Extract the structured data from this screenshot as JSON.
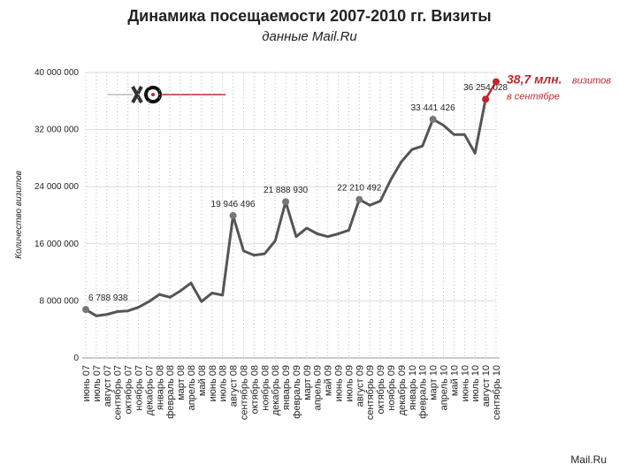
{
  "chart_data": {
    "type": "line",
    "title": "Динамика посещаемости 2007-2010 гг. Визиты",
    "subtitle": "данные Mail.Ru",
    "y_label": "Количество визитов",
    "source": "Mail.Ru",
    "categories": [
      "июнь 07",
      "июль 07",
      "август 07",
      "сентябрь 07",
      "октябрь 07",
      "ноябрь 07",
      "декабрь 07",
      "январь 08",
      "февраль 08",
      "март 08",
      "апрель 08",
      "май 08",
      "июнь 08",
      "июль 08",
      "август 08",
      "сентябрь 08",
      "октябрь 08",
      "ноябрь 08",
      "декабрь 08",
      "январь 09",
      "февраль 09",
      "март 09",
      "апрель 09",
      "май 09",
      "июнь 09",
      "июль 09",
      "август 09",
      "сентябрь 09",
      "октябрь 09",
      "ноябрь 09",
      "декабрь 09",
      "январь 10",
      "февраль 10",
      "март 10",
      "апрель 10",
      "май 10",
      "июнь 10",
      "июль 10",
      "август 10",
      "сентябрь 10"
    ],
    "series": [
      {
        "color": "#555555",
        "values": [
          6788938,
          5900000,
          6100000,
          6500000,
          6600000,
          7100000,
          7900000,
          8900000,
          8500000,
          9400000,
          10500000,
          7900000,
          9100000,
          8800000,
          19946496,
          15000000,
          14400000,
          14600000,
          16400000,
          21888930,
          17000000,
          18200000,
          17400000,
          17000000,
          17400000,
          17900000,
          22210492,
          21400000,
          22000000,
          25000000,
          27500000,
          29200000,
          29700000,
          33441426,
          32600000,
          31300000,
          31300000,
          28700000,
          36254028,
          38700000
        ],
        "value_labels": [
          "6 788 938",
          null,
          null,
          null,
          null,
          null,
          null,
          null,
          null,
          null,
          null,
          null,
          null,
          null,
          "19 946 496",
          null,
          null,
          null,
          null,
          "21 888 930",
          null,
          null,
          null,
          null,
          null,
          null,
          "22 210 492",
          null,
          null,
          null,
          null,
          null,
          null,
          "33 441 426",
          null,
          null,
          null,
          null,
          "36 254 028",
          "38,7 млн."
        ]
      }
    ],
    "highlight": {
      "color": "#c0272d",
      "categories": [
        "август 10",
        "сентябрь 10"
      ]
    },
    "annotations": [
      "визитов",
      "в сентябре"
    ],
    "ylim": [
      0,
      40000000
    ],
    "yticks": [
      0,
      {
        "value": 8000000,
        "label": "8 000 000"
      },
      {
        "value": 16000000,
        "label": "16 000 000"
      },
      {
        "value": 24000000,
        "label": "24 000 000"
      },
      {
        "value": 32000000,
        "label": "32 000 000"
      },
      {
        "value": 40000000,
        "label": "40 000 000"
      }
    ],
    "grid": true
  }
}
